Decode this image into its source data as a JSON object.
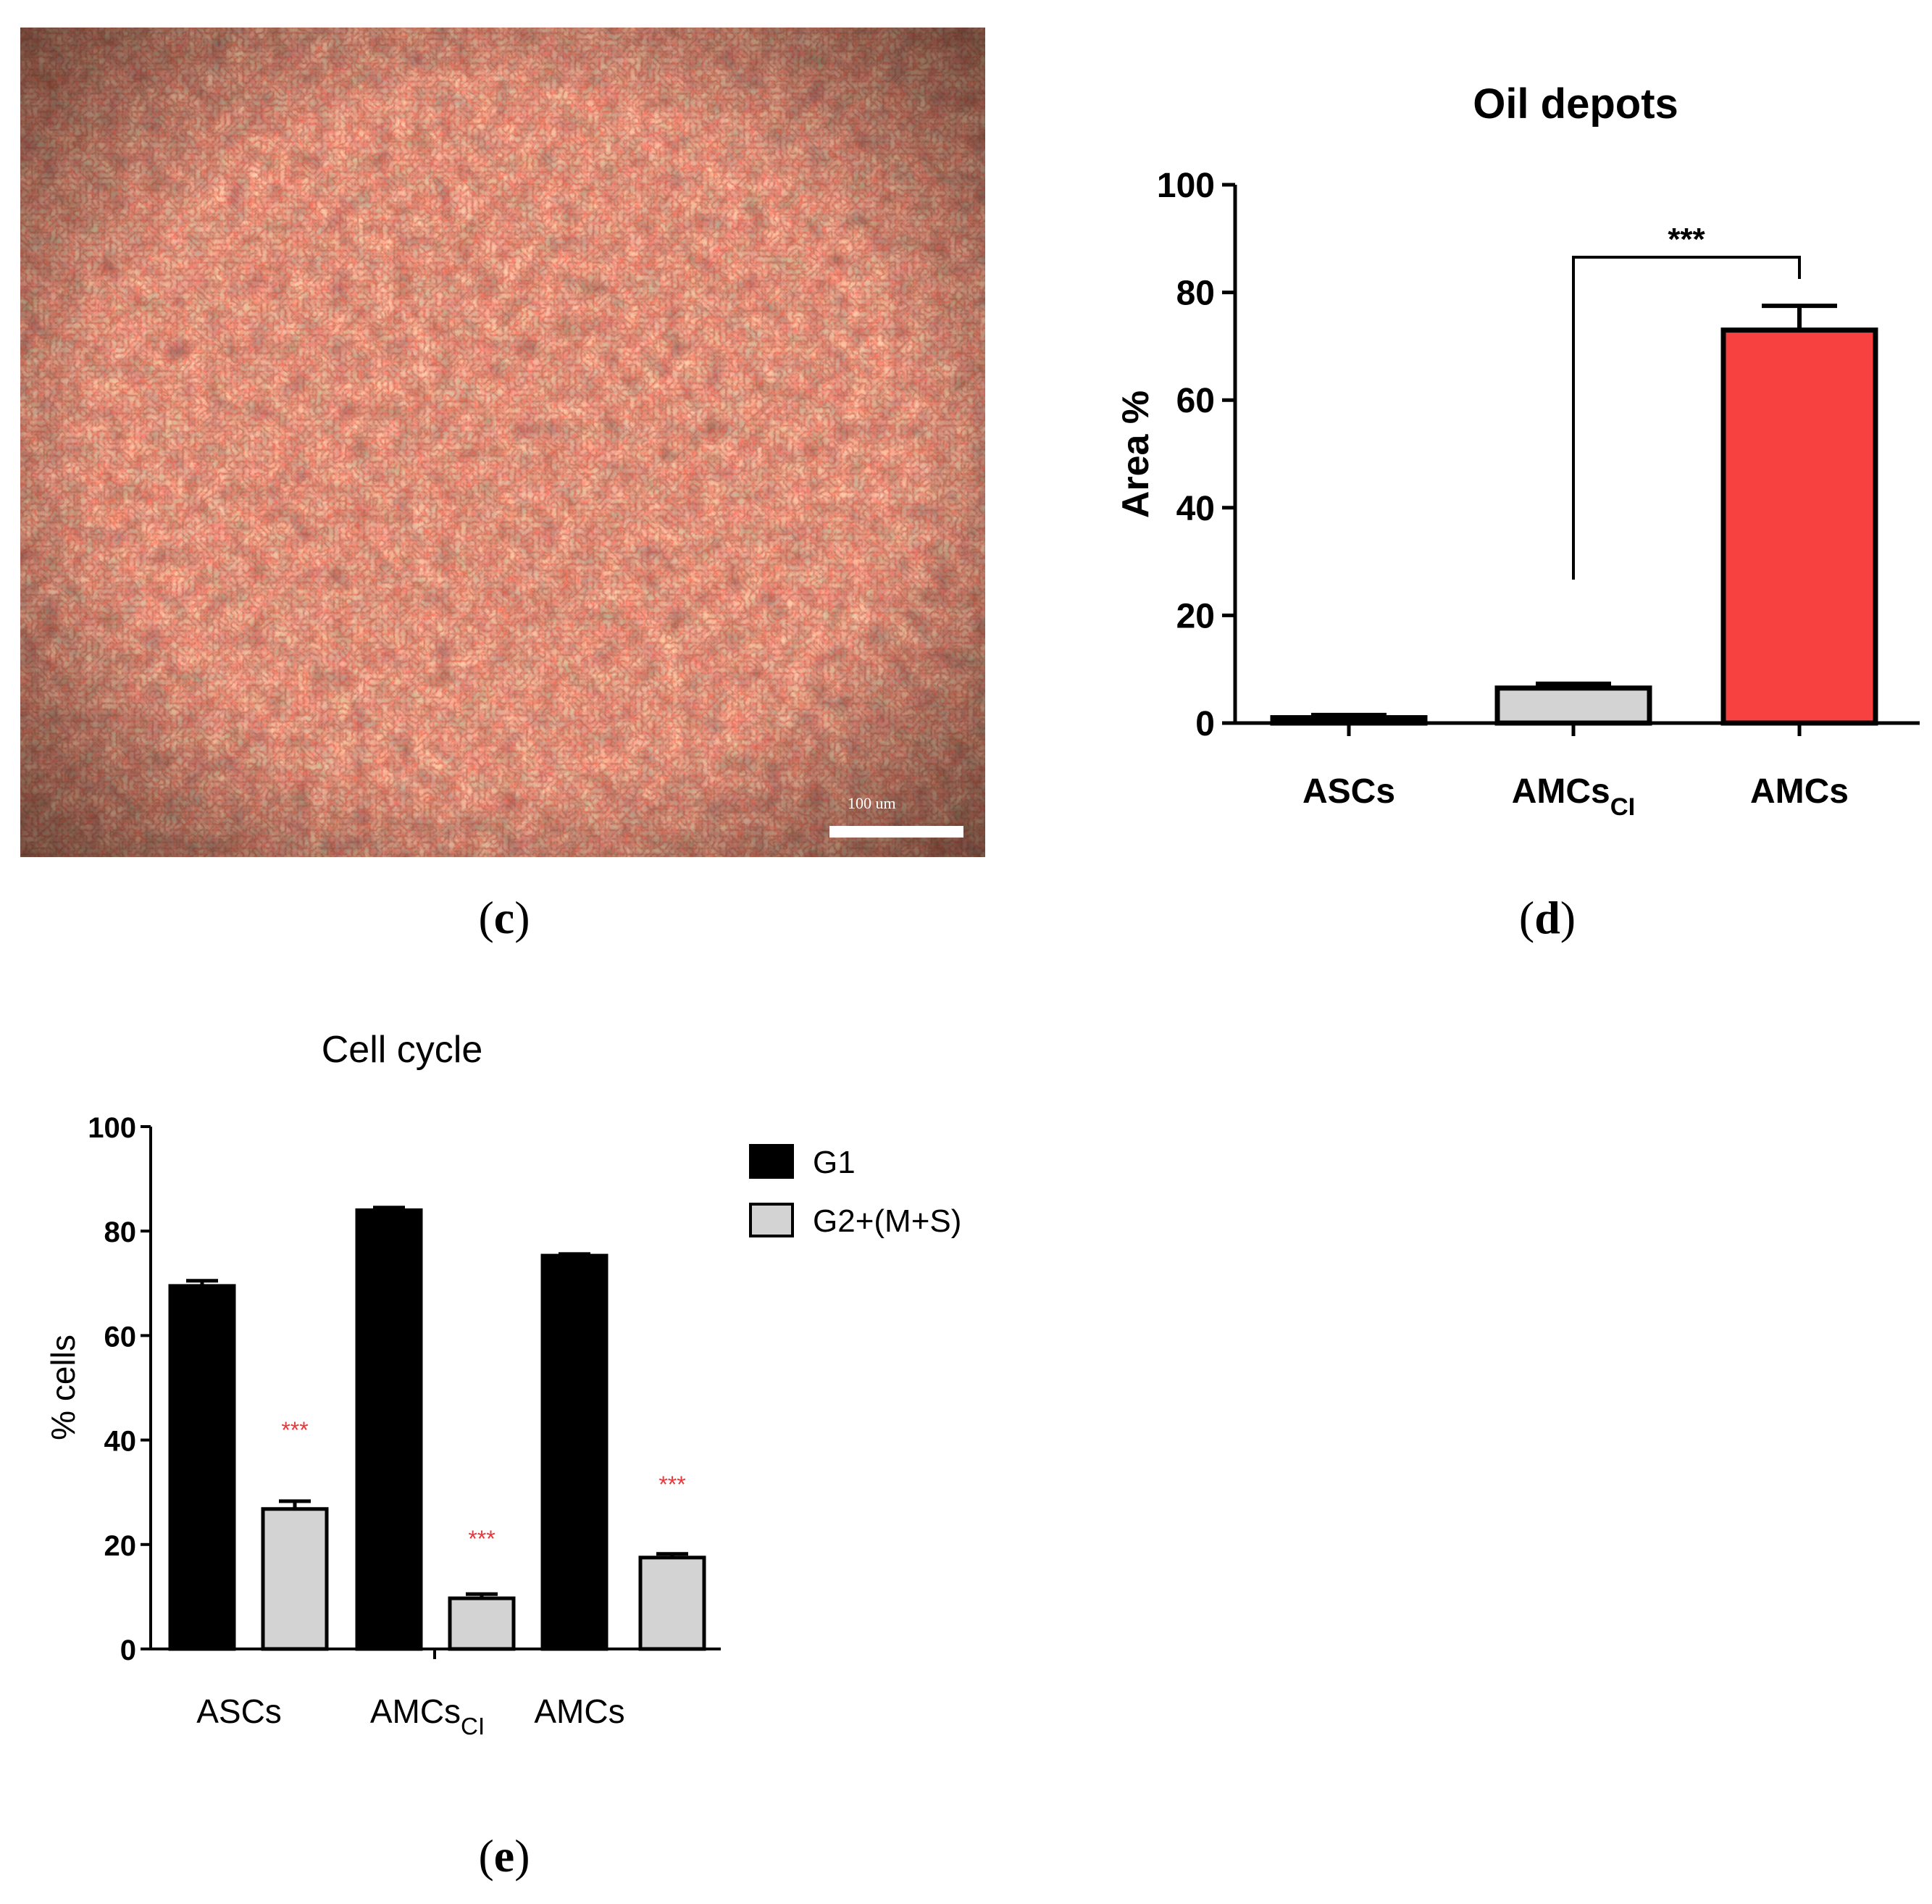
{
  "panels": {
    "c": {
      "letter": "c",
      "scale_bar_label": "100 um"
    },
    "d": {
      "letter": "d"
    },
    "e": {
      "letter": "e"
    }
  },
  "chart_data": [
    {
      "type": "bar",
      "title": "Oil depots",
      "ylabel": "Area %",
      "xlabel": "",
      "ylim": [
        0,
        100
      ],
      "yticks": [
        "0",
        "20",
        "40",
        "60",
        "80",
        "100"
      ],
      "categories": [
        "ASCs",
        "AMCs",
        "AMCs"
      ],
      "category_subscripts": [
        "",
        "CI",
        ""
      ],
      "values": [
        1,
        6.5,
        73
      ],
      "errors": [
        0.5,
        0.8,
        4.5
      ],
      "colors": [
        "#000000",
        "#d3d3d3",
        "#f74040"
      ],
      "significance": {
        "label": "***",
        "from": 1,
        "to": 2
      }
    },
    {
      "type": "bar",
      "title": "Cell cycle",
      "ylabel": "% cells",
      "xlabel": "",
      "ylim": [
        0,
        100
      ],
      "yticks": [
        "0",
        "20",
        "40",
        "60",
        "80",
        "100"
      ],
      "categories": [
        "ASCs",
        "AMCs",
        "AMCs"
      ],
      "category_subscripts": [
        "",
        "CI",
        ""
      ],
      "series": [
        {
          "name": "G1",
          "values": [
            69.5,
            84,
            75.3
          ],
          "errors": [
            1,
            0.5,
            0.3
          ],
          "color": "#000000"
        },
        {
          "name": "G2+(M+S)",
          "values": [
            26.8,
            9.7,
            17.5
          ],
          "errors": [
            1.5,
            0.8,
            0.7
          ],
          "color": "#d3d3d3"
        }
      ],
      "annotations": [
        "***",
        "***",
        "***"
      ],
      "annotation_color": "#e8393c",
      "legend_position": "right"
    }
  ]
}
